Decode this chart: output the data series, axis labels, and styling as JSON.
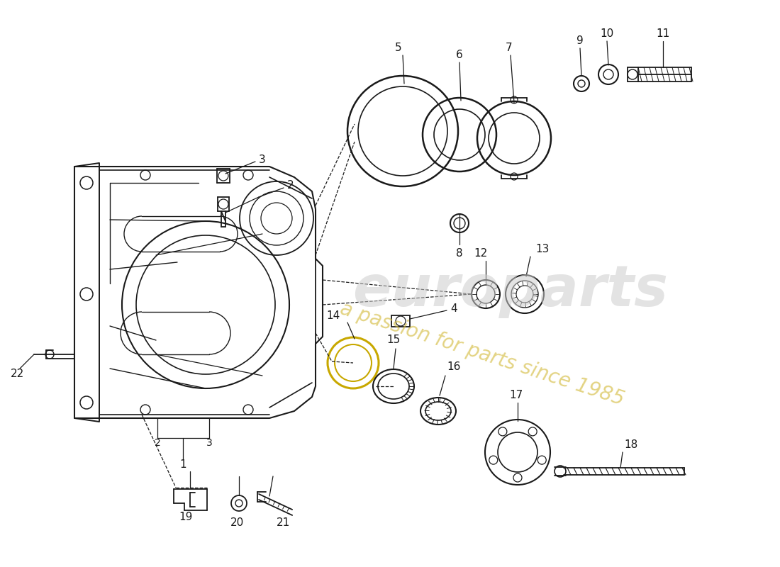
{
  "bg": "#ffffff",
  "lc": "#1a1a1a",
  "watermark1": "europarts",
  "watermark2": "a passion for parts since 1985",
  "fig_w": 11.0,
  "fig_h": 8.0,
  "dpi": 100
}
